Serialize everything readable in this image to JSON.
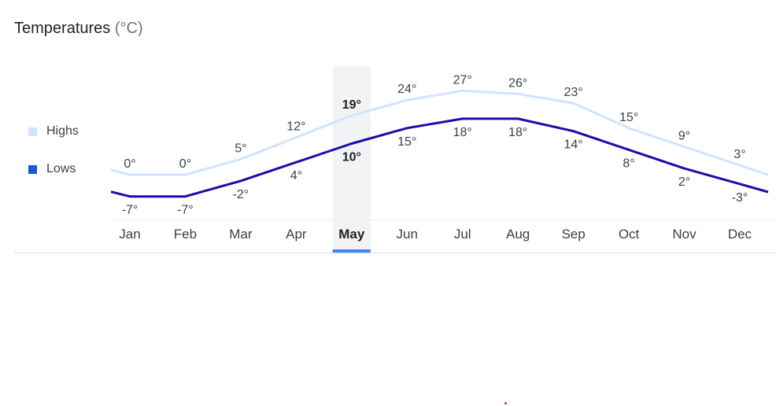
{
  "header": {
    "title": "Temperatures",
    "unit": "(°C)"
  },
  "legend": {
    "highs": "Highs",
    "lows": "Lows"
  },
  "colors": {
    "highs": "#d2e3fc",
    "lows": "#1a0dab",
    "selected_band": "#f1f3f4",
    "selected_underline": "#4285f4"
  },
  "chart_data": {
    "type": "line",
    "categories": [
      "Jan",
      "Feb",
      "Mar",
      "Apr",
      "May",
      "Jun",
      "Jul",
      "Aug",
      "Sep",
      "Oct",
      "Nov",
      "Dec"
    ],
    "series": [
      {
        "name": "Highs",
        "values": [
          0,
          0,
          5,
          12,
          19,
          24,
          27,
          26,
          23,
          15,
          9,
          3
        ]
      },
      {
        "name": "Lows",
        "values": [
          -7,
          -7,
          -2,
          4,
          10,
          15,
          18,
          18,
          14,
          8,
          2,
          -3
        ]
      }
    ],
    "labels": {
      "Highs": [
        "0°",
        "0°",
        "5°",
        "12°",
        "19°",
        "24°",
        "27°",
        "26°",
        "23°",
        "15°",
        "9°",
        "3°"
      ],
      "Lows": [
        "-7°",
        "-7°",
        "-2°",
        "4°",
        "10°",
        "15°",
        "18°",
        "18°",
        "14°",
        "8°",
        "2°",
        "-3°"
      ]
    },
    "selected": "May",
    "legend_position": "left",
    "grid": false
  }
}
